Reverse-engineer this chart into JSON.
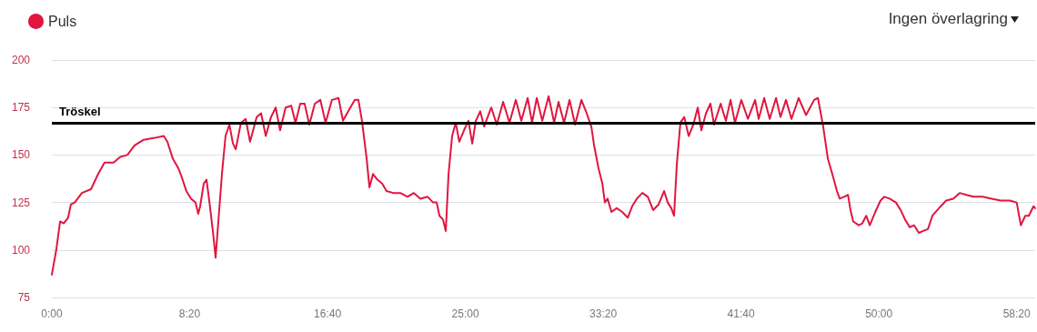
{
  "chart_data": {
    "type": "line",
    "annotations": [
      "Ingen överlagring"
    ],
    "legend": "top left",
    "grid": "y",
    "marker": "none",
    "line_style": "solid",
    "xlim": [
      0,
      3567
    ],
    "ylim": [
      75,
      200
    ],
    "xticks": [
      {
        "value": 0,
        "label": "0:00"
      },
      {
        "value": 500,
        "label": "8:20"
      },
      {
        "value": 1000,
        "label": "16:40"
      },
      {
        "value": 1500,
        "label": "25:00"
      },
      {
        "value": 2000,
        "label": "33:20"
      },
      {
        "value": 2500,
        "label": "41:40"
      },
      {
        "value": 3000,
        "label": "50:00"
      },
      {
        "value": 3500,
        "label": "58:20"
      }
    ],
    "yticks": [
      75,
      100,
      125,
      150,
      175,
      200
    ],
    "ref_lines": [
      {
        "axis": "y",
        "value": 167,
        "label": "Tröskel",
        "color": "#000000",
        "line_style": "solid"
      }
    ],
    "series": [
      {
        "name": "Puls",
        "color": "#e0163f",
        "x": [
          0,
          16,
          30,
          43,
          59,
          69,
          83,
          109,
          142,
          168,
          191,
          224,
          248,
          274,
          300,
          333,
          373,
          406,
          419,
          439,
          459,
          472,
          488,
          505,
          521,
          531,
          538,
          551,
          561,
          571,
          584,
          594,
          604,
          617,
          630,
          644,
          657,
          667,
          686,
          703,
          719,
          743,
          759,
          776,
          795,
          812,
          828,
          848,
          868,
          884,
          901,
          917,
          934,
          954,
          974,
          993,
          1016,
          1040,
          1056,
          1079,
          1099,
          1112,
          1125,
          1142,
          1152,
          1165,
          1181,
          1198,
          1214,
          1238,
          1264,
          1290,
          1313,
          1337,
          1363,
          1383,
          1396,
          1406,
          1419,
          1429,
          1439,
          1452,
          1465,
          1478,
          1495,
          1511,
          1525,
          1538,
          1554,
          1568,
          1594,
          1614,
          1637,
          1660,
          1683,
          1703,
          1726,
          1742,
          1759,
          1779,
          1802,
          1822,
          1838,
          1858,
          1878,
          1898,
          1921,
          1940,
          1957,
          1967,
          1983,
          1997,
          2006,
          2016,
          2030,
          2049,
          2069,
          2089,
          2105,
          2122,
          2142,
          2162,
          2181,
          2201,
          2221,
          2234,
          2247,
          2257,
          2267,
          2280,
          2294,
          2310,
          2327,
          2343,
          2356,
          2373,
          2389,
          2402,
          2426,
          2445,
          2462,
          2478,
          2501,
          2525,
          2551,
          2564,
          2584,
          2604,
          2627,
          2643,
          2663,
          2683,
          2709,
          2736,
          2765,
          2779,
          2798,
          2815,
          2831,
          2848,
          2858,
          2874,
          2888,
          2897,
          2907,
          2927,
          2940,
          2954,
          2967,
          2987,
          3006,
          3020,
          3039,
          3062,
          3079,
          3095,
          3112,
          3128,
          3145,
          3161,
          3178,
          3194,
          3218,
          3244,
          3270,
          3293,
          3317,
          3343,
          3376,
          3409,
          3442,
          3475,
          3500,
          3515,
          3531,
          3544,
          3561,
          3567
        ],
        "values": [
          87,
          100,
          115,
          114,
          117,
          124,
          125,
          130,
          132,
          140,
          146,
          146,
          149,
          150,
          155,
          158,
          159,
          160,
          157,
          148,
          143,
          138,
          131,
          127,
          125,
          119,
          123,
          135,
          137,
          126,
          110,
          96,
          115,
          140,
          160,
          166,
          156,
          153,
          167,
          169,
          157,
          170,
          172,
          160,
          170,
          175,
          163,
          175,
          176,
          167,
          177,
          177,
          166,
          177,
          179,
          167,
          179,
          180,
          168,
          174,
          179,
          179,
          168,
          148,
          133,
          140,
          137,
          135,
          131,
          130,
          130,
          128,
          130,
          127,
          128,
          125,
          125,
          118,
          116,
          110,
          140,
          160,
          167,
          157,
          163,
          168,
          156,
          168,
          173,
          165,
          175,
          166,
          178,
          167,
          179,
          168,
          180,
          167,
          180,
          168,
          181,
          167,
          178,
          167,
          179,
          166,
          179,
          172,
          165,
          155,
          143,
          135,
          125,
          127,
          120,
          122,
          120,
          117,
          123,
          127,
          130,
          128,
          121,
          124,
          131,
          125,
          122,
          118,
          145,
          167,
          170,
          160,
          166,
          175,
          163,
          172,
          177,
          166,
          177,
          168,
          179,
          167,
          179,
          169,
          179,
          169,
          180,
          169,
          180,
          170,
          179,
          169,
          180,
          171,
          179,
          180,
          165,
          148,
          140,
          131,
          127,
          128,
          129,
          121,
          115,
          113,
          114,
          118,
          113,
          120,
          126,
          128,
          127,
          125,
          121,
          116,
          112,
          113,
          109,
          110,
          111,
          118,
          122,
          126,
          127,
          130,
          129,
          128,
          128,
          127,
          126,
          126,
          125,
          113,
          118,
          118,
          123,
          122
        ]
      }
    ]
  }
}
